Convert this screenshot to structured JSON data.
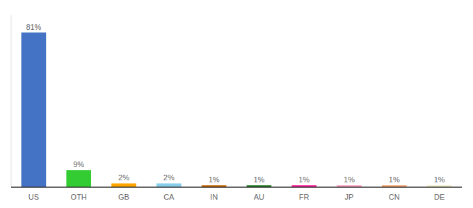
{
  "chart_data": {
    "type": "bar",
    "categories": [
      "US",
      "OTH",
      "GB",
      "CA",
      "IN",
      "AU",
      "FR",
      "JP",
      "CN",
      "DE"
    ],
    "values": [
      81,
      9,
      2,
      2,
      1,
      1,
      1,
      1,
      1,
      1
    ],
    "value_labels": [
      "81%",
      "9%",
      "2%",
      "2%",
      "1%",
      "1%",
      "1%",
      "1%",
      "1%",
      "1%"
    ],
    "colors": [
      "#4472C4",
      "#33CC33",
      "#FFA500",
      "#87CEEB",
      "#CC6600",
      "#1E7B1E",
      "#FF1493",
      "#FF9EBC",
      "#F4A46A",
      "#F0ECC8"
    ],
    "ylim": [
      0,
      90
    ],
    "data_labels": true,
    "tick_labels": "x"
  }
}
